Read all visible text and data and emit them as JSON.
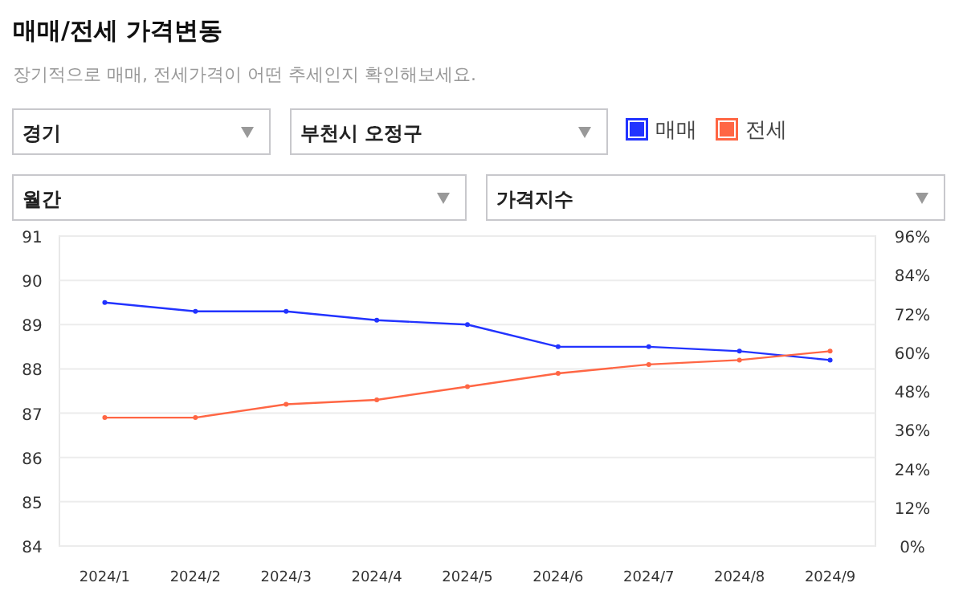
{
  "chart_data": {
    "type": "line",
    "title": "매매/전세 가격변동",
    "subtitle": "장기적으로 매매, 전세가격이 어떤 추세인지 확인해보세요.",
    "annotations": [
      "경기",
      "부천시 오정구",
      "월간",
      "가격지수"
    ],
    "categories": [
      "2024/1",
      "2024/2",
      "2024/3",
      "2024/4",
      "2024/5",
      "2024/6",
      "2024/7",
      "2024/8",
      "2024/9"
    ],
    "series": [
      {
        "name": "매매",
        "color": "#2233ff",
        "values": [
          89.5,
          89.3,
          89.3,
          89.1,
          89.0,
          88.5,
          88.5,
          88.4,
          88.2
        ]
      },
      {
        "name": "전세",
        "color": "#ff6644",
        "values": [
          86.9,
          86.9,
          87.2,
          87.3,
          87.6,
          87.9,
          88.1,
          88.2,
          88.4
        ]
      }
    ],
    "ylim": [
      84,
      91
    ],
    "yticks": [
      84,
      85,
      86,
      87,
      88,
      89,
      90,
      91
    ],
    "y2lim": [
      0,
      96
    ],
    "y2ticks": [
      {
        "value": 0,
        "label": "0%"
      },
      {
        "value": 12,
        "label": "12%"
      },
      {
        "value": 24,
        "label": "24%"
      },
      {
        "value": 36,
        "label": "36%"
      },
      {
        "value": 48,
        "label": "48%"
      },
      {
        "value": 60,
        "label": "60%"
      },
      {
        "value": 72,
        "label": "72%"
      },
      {
        "value": 84,
        "label": "84%"
      },
      {
        "value": 96,
        "label": "96%"
      }
    ],
    "grid": "y",
    "legend": "top",
    "marker": "circle",
    "line_style": "solid"
  }
}
